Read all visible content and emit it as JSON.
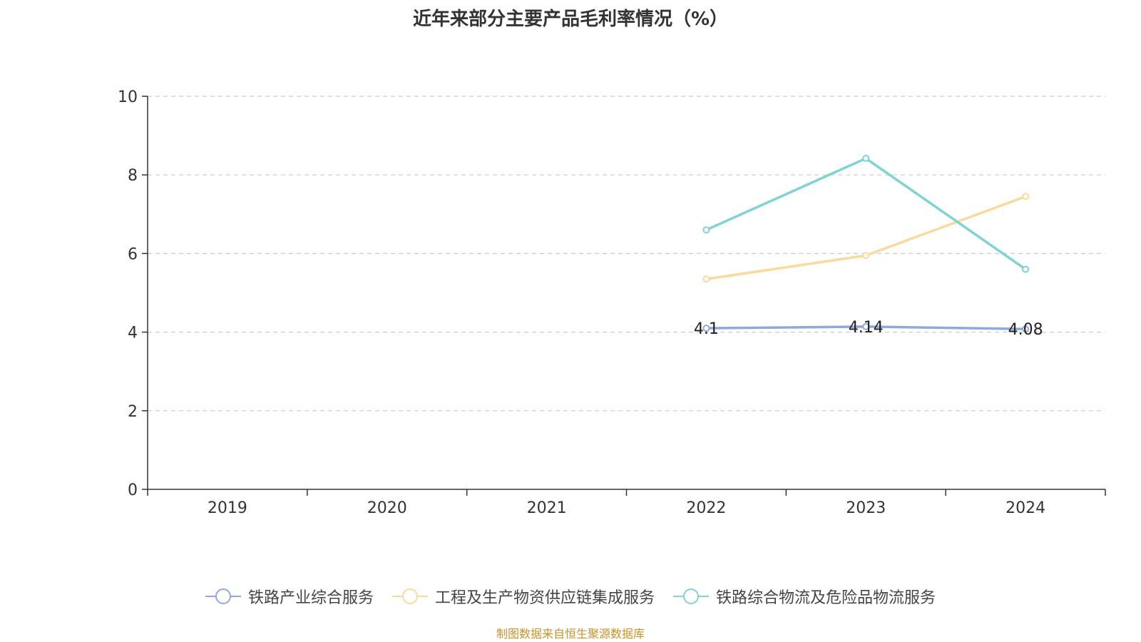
{
  "title": "近年来部分主要产品毛利率情况（%）",
  "source": "制图数据来自恒生聚源数据库",
  "chart_data": {
    "type": "line",
    "title": "近年来部分主要产品毛利率情况（%）",
    "categories": [
      "2019",
      "2020",
      "2021",
      "2022",
      "2023",
      "2024"
    ],
    "ylim": [
      0,
      10
    ],
    "yticks": [
      0,
      2,
      4,
      6,
      8,
      10
    ],
    "grid": true,
    "legend_position": "bottom",
    "series": [
      {
        "name": "铁路产业综合服务",
        "color": "#8eaadb",
        "values": [
          null,
          null,
          null,
          4.1,
          4.14,
          4.08
        ],
        "labels": [
          "",
          "",
          "",
          "4.1",
          "4.14",
          "4.08"
        ]
      },
      {
        "name": "工程及生产物资供应链集成服务",
        "color": "#fbd99a",
        "values": [
          null,
          null,
          null,
          5.35,
          5.95,
          7.45
        ],
        "labels": [
          "",
          "",
          "",
          "",
          "",
          ""
        ]
      },
      {
        "name": "铁路综合物流及危险品物流服务",
        "color": "#7fd3d3",
        "values": [
          null,
          null,
          null,
          6.6,
          8.42,
          5.6
        ],
        "labels": [
          "",
          "",
          "",
          "",
          "",
          ""
        ]
      }
    ]
  }
}
